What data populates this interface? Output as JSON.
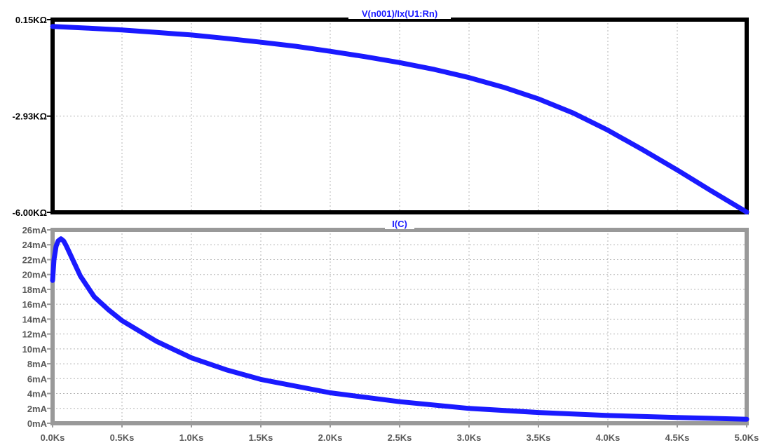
{
  "chart_data": [
    {
      "type": "line",
      "title": "V(n001)/Ix(U1:Rn)",
      "xlim": [
        0,
        5000
      ],
      "ylim": [
        -6000,
        150
      ],
      "grid": true,
      "ytick_values": [
        150,
        -2930,
        -6000
      ],
      "ytick_labels": [
        "0.15KΩ",
        "-2.93KΩ",
        "-6.00KΩ"
      ],
      "xtick_values": [
        0,
        500,
        1000,
        1500,
        2000,
        2500,
        3000,
        3500,
        4000,
        4500,
        5000
      ],
      "colors": {
        "frame": "#000000",
        "line": "#1a1aff",
        "title_bg": "#ffffff"
      },
      "series": [
        {
          "x": [
            0,
            250,
            500,
            750,
            1000,
            1250,
            1500,
            1750,
            2000,
            2250,
            2500,
            2750,
            3000,
            3250,
            3500,
            3750,
            4000,
            4250,
            4500,
            4750,
            5000
          ],
          "y": [
            -70,
            -120,
            -180,
            -260,
            -340,
            -450,
            -570,
            -700,
            -860,
            -1030,
            -1220,
            -1440,
            -1700,
            -2010,
            -2380,
            -2830,
            -3380,
            -4000,
            -4650,
            -5330,
            -5990
          ]
        }
      ]
    },
    {
      "type": "line",
      "title": "I(C)",
      "xlim": [
        0,
        5000
      ],
      "ylim": [
        0,
        26
      ],
      "grid": true,
      "ytick_values": [
        0,
        2,
        4,
        6,
        8,
        10,
        12,
        14,
        16,
        18,
        20,
        22,
        24,
        26
      ],
      "ytick_labels": [
        "0mA",
        "2mA",
        "4mA",
        "6mA",
        "8mA",
        "10mA",
        "12mA",
        "14mA",
        "16mA",
        "18mA",
        "20mA",
        "22mA",
        "24mA",
        "26mA"
      ],
      "xtick_values": [
        0,
        500,
        1000,
        1500,
        2000,
        2500,
        3000,
        3500,
        4000,
        4500,
        5000
      ],
      "xtick_labels": [
        "0.0Ks",
        "0.5Ks",
        "1.0Ks",
        "1.5Ks",
        "2.0Ks",
        "2.5Ks",
        "3.0Ks",
        "3.5Ks",
        "4.0Ks",
        "4.5Ks",
        "5.0Ks"
      ],
      "colors": {
        "frame": "#999999",
        "line": "#1a1aff",
        "title_bg": "#ffffff"
      },
      "series": [
        {
          "x": [
            0,
            10,
            25,
            40,
            60,
            80,
            100,
            150,
            200,
            300,
            400,
            500,
            750,
            1000,
            1250,
            1500,
            2000,
            2500,
            3000,
            3500,
            4000,
            4500,
            5000
          ],
          "y": [
            19.2,
            22.0,
            23.8,
            24.5,
            24.8,
            24.5,
            23.8,
            21.8,
            19.8,
            17.0,
            15.3,
            13.8,
            11.0,
            8.8,
            7.2,
            5.9,
            4.1,
            2.9,
            2.0,
            1.45,
            1.05,
            0.78,
            0.55
          ]
        }
      ]
    }
  ]
}
